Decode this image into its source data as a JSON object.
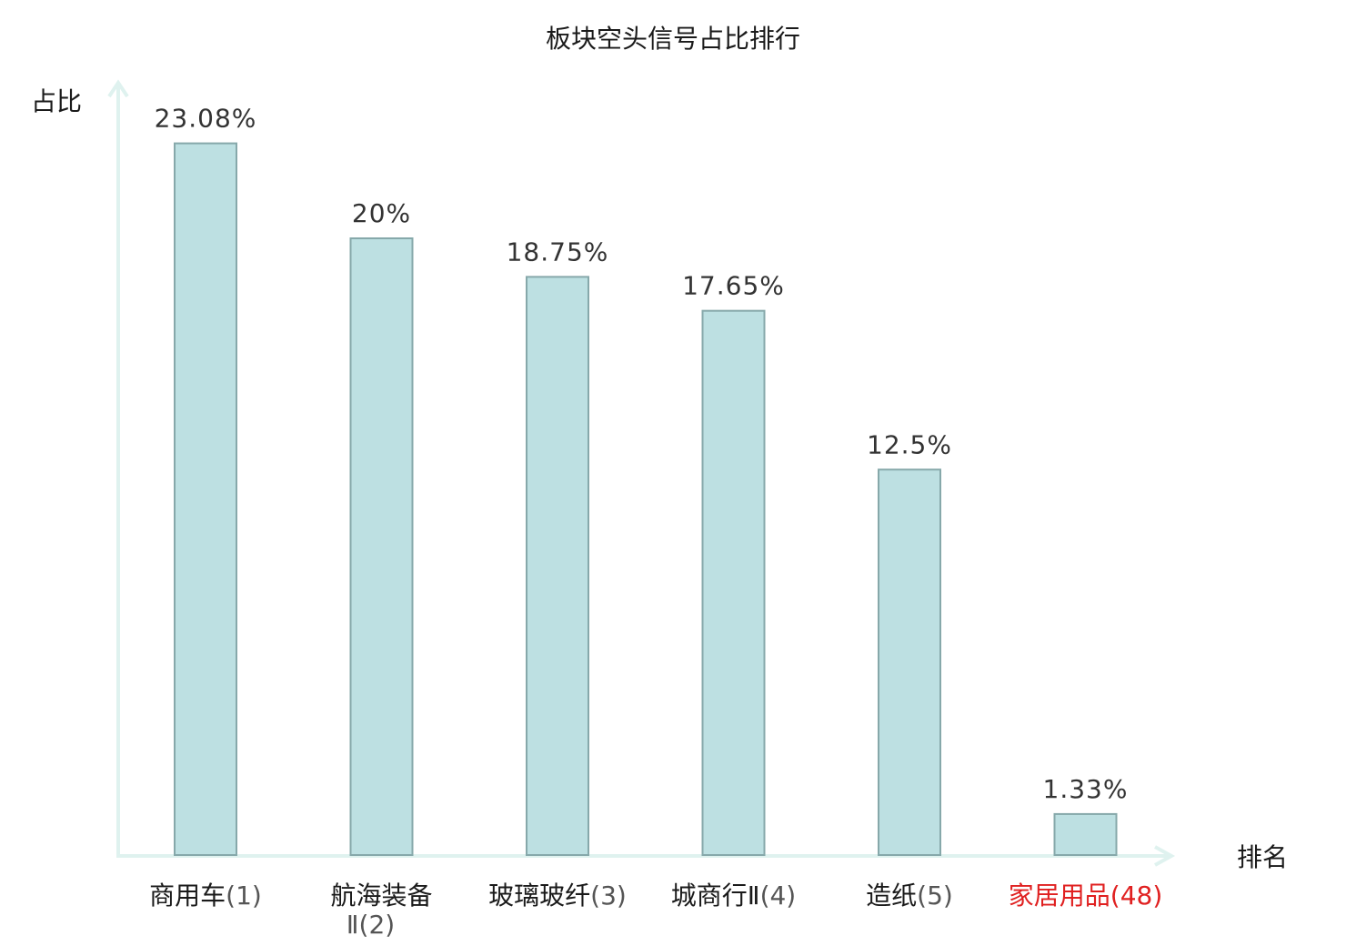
{
  "chart_data": {
    "type": "bar",
    "title": "板块空头信号占比排行",
    "xlabel": "排名",
    "ylabel": "占比",
    "categories": [
      {
        "name": "商用车",
        "rank": "(1)",
        "highlight": false
      },
      {
        "name": "航海装备",
        "name_line2": "Ⅱ",
        "rank": "(2)",
        "highlight": false
      },
      {
        "name": "玻璃玻纤",
        "rank": "(3)",
        "highlight": false
      },
      {
        "name": "城商行Ⅱ",
        "rank": "(4)",
        "highlight": false
      },
      {
        "name": "造纸",
        "rank": "(5)",
        "highlight": false
      },
      {
        "name": "家居用品",
        "rank": "(48)",
        "highlight": true
      }
    ],
    "values": [
      23.08,
      20,
      18.75,
      17.65,
      12.5,
      1.33
    ],
    "value_labels": [
      "23.08%",
      "20%",
      "18.75%",
      "17.65%",
      "12.5%",
      "1.33%"
    ],
    "ylim": [
      0,
      25
    ],
    "grid": false,
    "colors": {
      "bar_fill": "#bde0e2",
      "bar_stroke": "#86a8aa",
      "axis": "#dff2ef",
      "text": "#1a1a1a",
      "value_text": "#333333",
      "rank_text": "#555555",
      "highlight": "#e02020"
    }
  }
}
